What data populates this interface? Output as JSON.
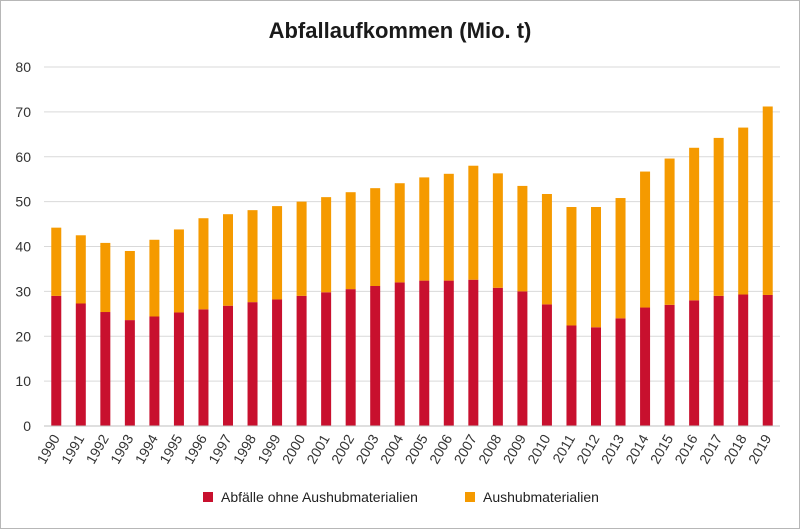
{
  "chart_data": {
    "type": "bar",
    "stacked": true,
    "title": "Abfallaufkommen (Mio. t)",
    "categories": [
      "1990",
      "1991",
      "1992",
      "1993",
      "1994",
      "1995",
      "1996",
      "1997",
      "1998",
      "1999",
      "2000",
      "2001",
      "2002",
      "2003",
      "2004",
      "2005",
      "2006",
      "2007",
      "2008",
      "2009",
      "2010",
      "2011",
      "2012",
      "2013",
      "2014",
      "2015",
      "2016",
      "2017",
      "2018",
      "2019"
    ],
    "series": [
      {
        "name": "Abfälle ohne Aushubmaterialien",
        "color": "#c8102e",
        "values": [
          29.0,
          27.3,
          25.4,
          23.6,
          24.4,
          25.3,
          26.0,
          26.8,
          27.6,
          28.2,
          29.0,
          29.8,
          30.5,
          31.2,
          32.0,
          32.4,
          32.4,
          32.6,
          30.8,
          30.0,
          27.1,
          22.4,
          22.0,
          24.0,
          26.4,
          27.0,
          28.0,
          29.0,
          29.3,
          29.2
        ]
      },
      {
        "name": "Aushubmaterialien",
        "color": "#f59a00",
        "values": [
          15.2,
          15.2,
          15.4,
          15.4,
          17.1,
          18.5,
          20.3,
          20.4,
          20.5,
          20.8,
          21.0,
          21.2,
          21.6,
          21.8,
          22.1,
          23.0,
          23.8,
          25.4,
          25.5,
          23.5,
          24.6,
          26.4,
          26.8,
          26.8,
          30.3,
          32.6,
          34.0,
          35.2,
          37.2,
          42.0
        ]
      }
    ],
    "ylim": [
      0,
      80
    ],
    "yticks": [
      0,
      10,
      20,
      30,
      40,
      50,
      60,
      70,
      80
    ],
    "grid": true,
    "legend": "bottom"
  }
}
